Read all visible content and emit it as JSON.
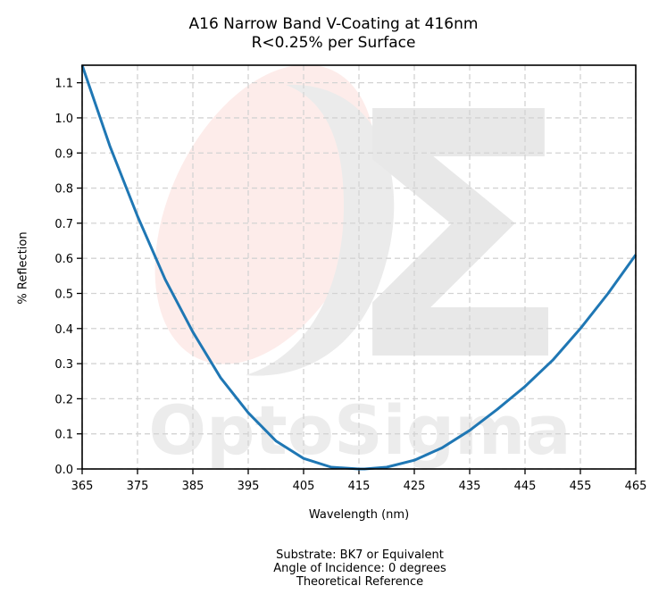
{
  "chart_data": {
    "type": "line",
    "title": [
      "A16 Narrow Band V-Coating at 416nm",
      "R<0.25% per Surface"
    ],
    "xlabel": "Wavelength (nm)",
    "ylabel": "% Reflection",
    "xlim": [
      365,
      465
    ],
    "ylim": [
      0,
      1.15
    ],
    "xticks": [
      365,
      375,
      385,
      395,
      405,
      415,
      425,
      435,
      445,
      455,
      465
    ],
    "yticks": [
      0.0,
      0.1,
      0.2,
      0.3,
      0.4,
      0.5,
      0.6,
      0.7,
      0.8,
      0.9,
      1.0,
      1.1
    ],
    "ytick_labels": [
      "0.0",
      "0.1",
      "0.2",
      "0.3",
      "0.4",
      "0.5",
      "0.6",
      "0.7",
      "0.8",
      "0.9",
      "1.0",
      "1.1"
    ],
    "grid": true,
    "series": [
      {
        "color": "#1f77b4",
        "x": [
          365,
          370,
          375,
          380,
          385,
          390,
          395,
          400,
          405,
          410,
          415,
          416,
          420,
          425,
          430,
          435,
          440,
          445,
          450,
          455,
          460,
          465
        ],
        "y": [
          1.15,
          0.92,
          0.72,
          0.54,
          0.39,
          0.26,
          0.16,
          0.08,
          0.03,
          0.005,
          0.0,
          0.0,
          0.005,
          0.025,
          0.06,
          0.11,
          0.17,
          0.235,
          0.31,
          0.4,
          0.5,
          0.61
        ]
      }
    ]
  },
  "watermark": {
    "text": "OptoSigma",
    "symbol": "Σ"
  },
  "footnotes": [
    "Substrate: BK7 or Equivalent",
    "Angle of Incidence: 0 degrees",
    "Theoretical Reference"
  ]
}
